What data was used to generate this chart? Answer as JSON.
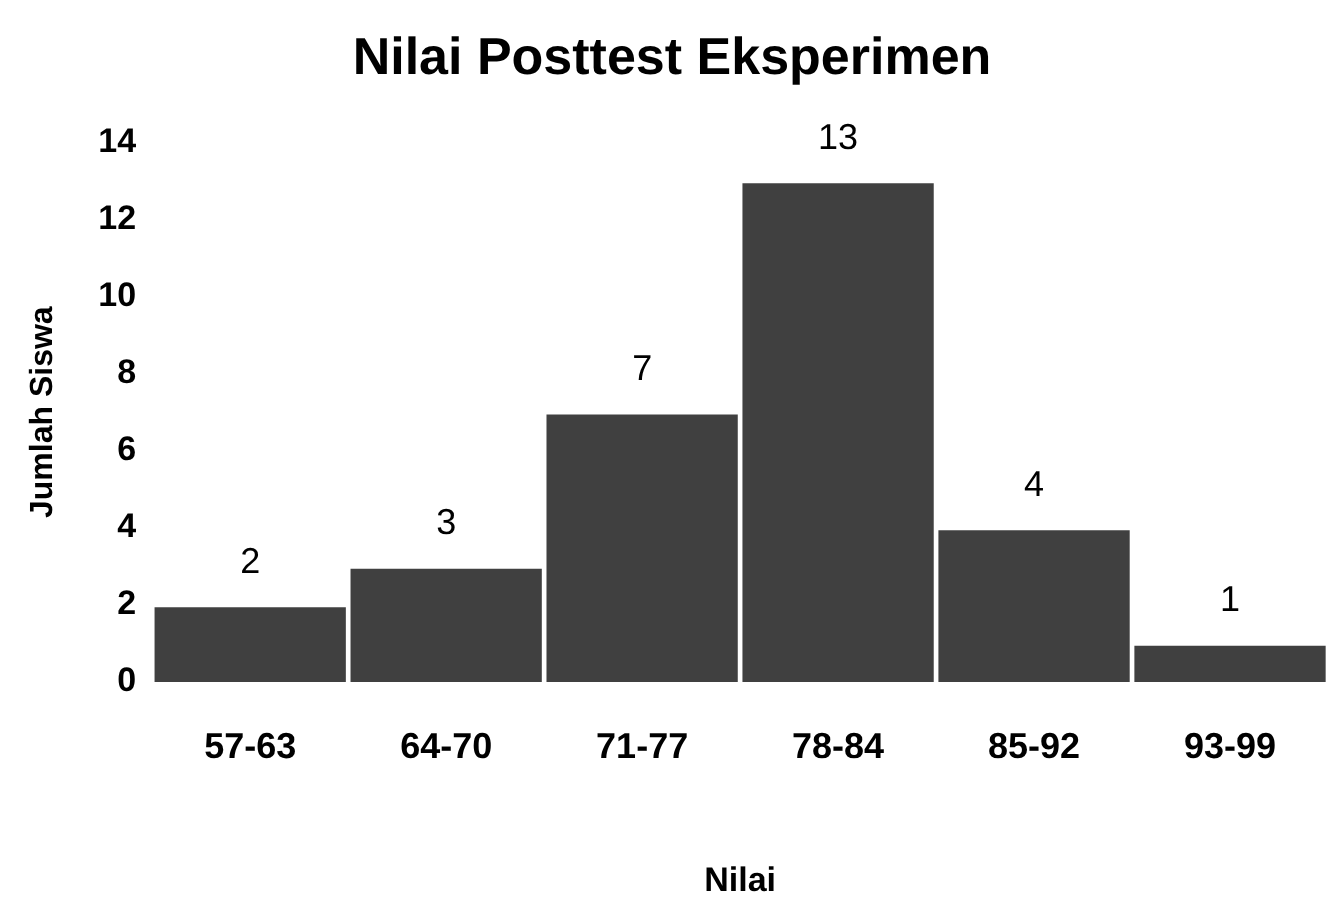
{
  "chart_data": {
    "type": "bar",
    "title": "Nilai Posttest Eksperimen",
    "xlabel": "Nilai",
    "ylabel": "Jumlah Siswa",
    "categories": [
      "57-63",
      "64-70",
      "71-77",
      "78-84",
      "85-92",
      "93-99"
    ],
    "values": [
      2,
      3,
      7,
      13,
      4,
      1
    ],
    "color": "#404040",
    "ylim": [
      0,
      14
    ],
    "yticks": [
      0,
      2,
      4,
      6,
      8,
      10,
      12,
      14
    ],
    "grid": false,
    "legend": false,
    "data_labels": true
  }
}
